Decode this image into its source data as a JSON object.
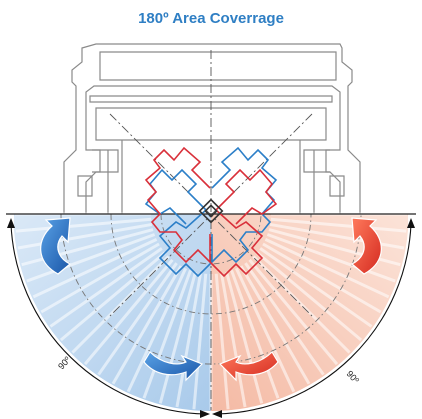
{
  "title": "180º Area Coverrage",
  "left_angle_label": "90º",
  "right_angle_label": "90º",
  "colors": {
    "title": "#2f7fc4",
    "left_zone": "#bcd7ef",
    "right_zone": "#f7c8b5",
    "blue_outline": "#2c7fc8",
    "red_outline": "#d9303a",
    "arrow_blue": "#1f62b8",
    "arrow_red": "#e23a2a",
    "rays": "#c9c9c9",
    "device_line": "#8a8a8a"
  },
  "icons": [
    "rotate-arrow-icon"
  ]
}
